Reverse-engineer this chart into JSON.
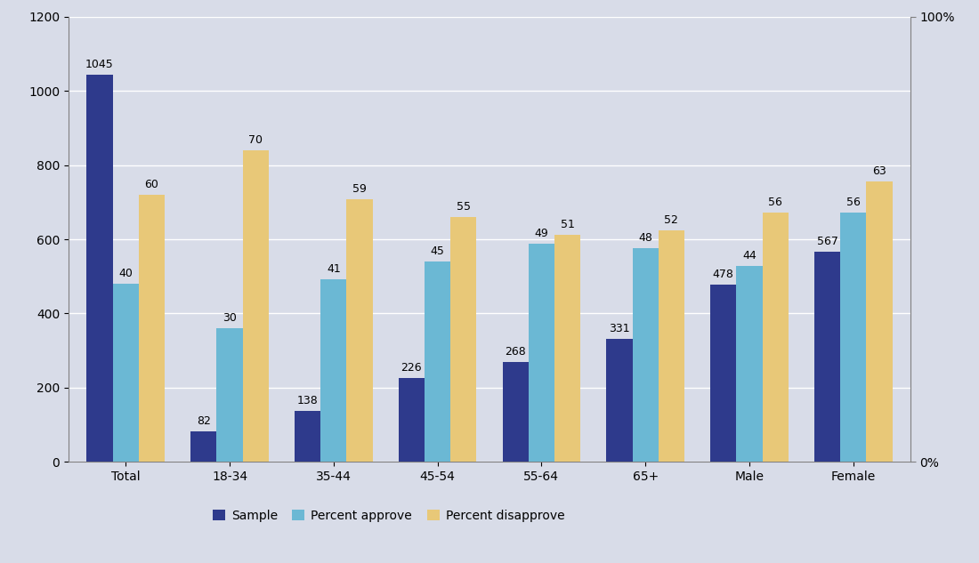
{
  "categories": [
    "Total",
    "18-34",
    "35-44",
    "45-54",
    "55-64",
    "65+",
    "Male",
    "Female"
  ],
  "sample": [
    1045,
    82,
    138,
    226,
    268,
    331,
    478,
    567
  ],
  "percent_approve_raw": [
    40,
    30,
    41,
    45,
    49,
    48,
    44,
    56
  ],
  "percent_disapprove_raw": [
    60,
    70,
    59,
    55,
    51,
    52,
    56,
    63
  ],
  "percent_approve_scaled": [
    480,
    360,
    492,
    540,
    588,
    576,
    528,
    672
  ],
  "percent_disapprove_scaled": [
    720,
    840,
    708,
    660,
    612,
    624,
    672,
    756
  ],
  "color_sample": "#2E3A8C",
  "color_approve": "#6BB8D4",
  "color_disapprove": "#E8C878",
  "ylim_max": 1200,
  "yticks": [
    0,
    200,
    400,
    600,
    800,
    1000,
    1200
  ],
  "legend_labels": [
    "Sample",
    "Percent approve",
    "Percent disapprove"
  ],
  "bg_color": "#D8DCE8",
  "plot_bg_color": "#D8DCE8",
  "bar_width": 0.25,
  "label_fontsize": 9,
  "tick_fontsize": 10
}
